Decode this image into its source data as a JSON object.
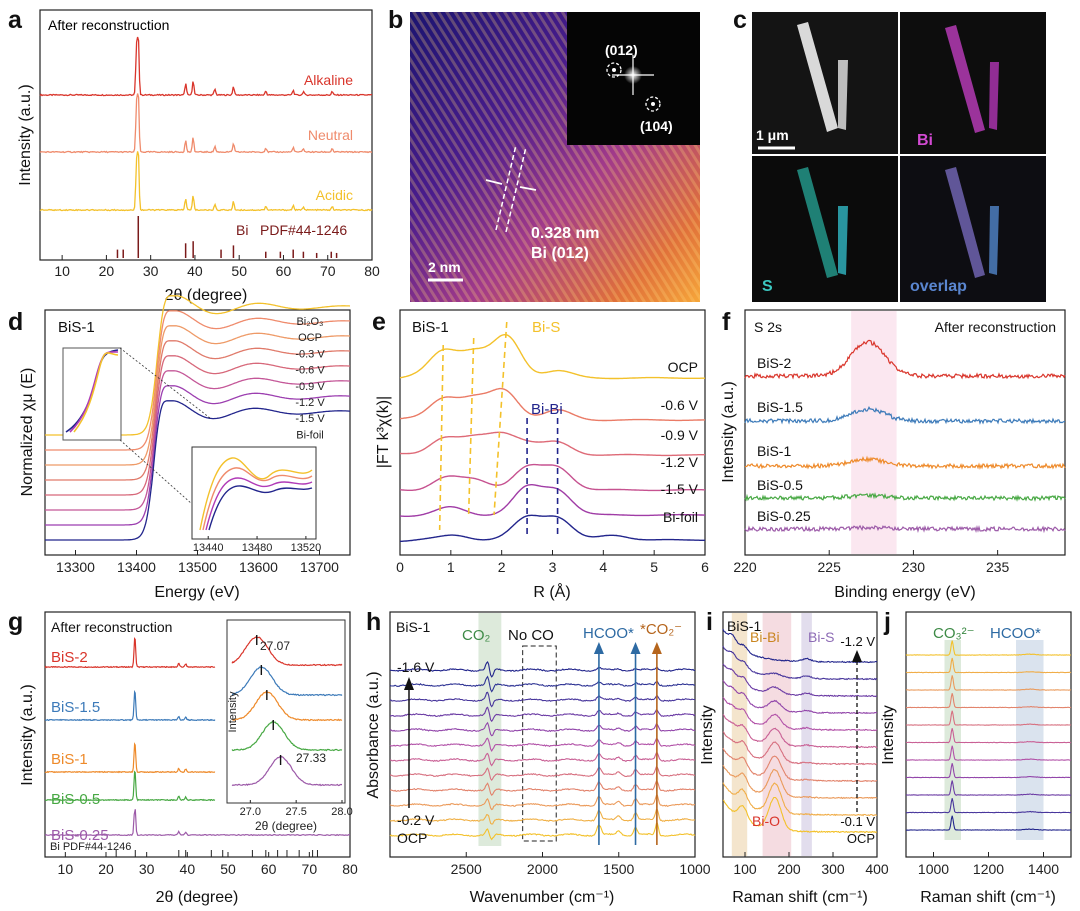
{
  "colors": {
    "red": "#d9352b",
    "salmon": "#ef8b6c",
    "yellow": "#f3c12b",
    "orange": "#ee8a2a",
    "blue": "#3c7ab9",
    "green": "#47a843",
    "purple": "#9c5aa8",
    "navy": "#22258c",
    "magenta": "#b03ab7",
    "teal": "#2eb3a8"
  },
  "chart_data": [
    {
      "panel": "a",
      "type": "line",
      "title": "After reconstruction",
      "xlabel": "2θ (degree)",
      "ylabel": "Intensity (a.u.)",
      "xlim": [
        5,
        80
      ],
      "xticks": [
        10,
        20,
        30,
        40,
        50,
        60,
        70,
        80
      ],
      "series": [
        {
          "name": "Alkaline",
          "peaks": [
            [
              26.8,
              0.8
            ],
            [
              27.2,
              1.0
            ],
            [
              37.9,
              0.2
            ],
            [
              39.6,
              0.25
            ],
            [
              44.5,
              0.1
            ],
            [
              48.7,
              0.15
            ],
            [
              56,
              0.07
            ],
            [
              62.2,
              0.08
            ],
            [
              64.5,
              0.06
            ],
            [
              71,
              0.06
            ]
          ]
        },
        {
          "name": "Neutral",
          "peaks": [
            [
              26.8,
              0.8
            ],
            [
              27.2,
              1.0
            ],
            [
              37.9,
              0.2
            ],
            [
              39.6,
              0.25
            ],
            [
              44.5,
              0.1
            ],
            [
              48.7,
              0.15
            ],
            [
              56,
              0.07
            ],
            [
              62.2,
              0.08
            ],
            [
              64.5,
              0.06
            ],
            [
              71,
              0.06
            ]
          ]
        },
        {
          "name": "Acidic",
          "peaks": [
            [
              26.8,
              0.8
            ],
            [
              27.2,
              1.0
            ],
            [
              37.9,
              0.2
            ],
            [
              39.6,
              0.25
            ],
            [
              44.5,
              0.1
            ],
            [
              48.7,
              0.15
            ],
            [
              56,
              0.07
            ],
            [
              62.2,
              0.08
            ],
            [
              64.5,
              0.06
            ],
            [
              71,
              0.06
            ]
          ]
        }
      ],
      "reference": {
        "name": "Bi",
        "pdf": "PDF#44-1246",
        "lines": [
          [
            22.5,
            0.2
          ],
          [
            23.8,
            0.2
          ],
          [
            27.2,
            1.0
          ],
          [
            37.9,
            0.35
          ],
          [
            39.6,
            0.4
          ],
          [
            45.9,
            0.2
          ],
          [
            48.7,
            0.3
          ],
          [
            56,
            0.15
          ],
          [
            59.3,
            0.15
          ],
          [
            62.2,
            0.2
          ],
          [
            64.5,
            0.15
          ],
          [
            67.5,
            0.12
          ],
          [
            70.8,
            0.15
          ],
          [
            72,
            0.12
          ]
        ]
      }
    },
    {
      "panel": "d",
      "type": "line",
      "title": "BiS-1",
      "xlabel": "Energy (eV)",
      "ylabel": "Normalized χμ (E)",
      "xlim": [
        13250,
        13750
      ],
      "xticks": [
        13300,
        13400,
        13500,
        13600,
        13700
      ],
      "series": [
        {
          "name": "Bi₂O₃"
        },
        {
          "name": "OCP"
        },
        {
          "name": "-0.3 V"
        },
        {
          "name": "-0.6 V"
        },
        {
          "name": "-0.9 V"
        },
        {
          "name": "-1.2 V"
        },
        {
          "name": "-1.5 V"
        },
        {
          "name": "Bi-foil"
        }
      ],
      "inset": {
        "xticks": [
          13440,
          13480,
          13520
        ]
      }
    },
    {
      "panel": "e",
      "type": "line",
      "title": "BiS-1",
      "xlabel": "R (Å)",
      "ylabel": "|FT k³χ(k)|",
      "xlim": [
        0,
        6
      ],
      "xticks": [
        0,
        1,
        2,
        3,
        4,
        5,
        6
      ],
      "series": [
        {
          "name": "OCP",
          "peaks": [
            [
              0.85,
              0.55
            ],
            [
              1.45,
              0.5
            ],
            [
              2.1,
              0.85
            ],
            [
              3.1,
              0.15
            ]
          ]
        },
        {
          "name": "-0.6 V",
          "peaks": [
            [
              0.85,
              0.45
            ],
            [
              1.45,
              0.4
            ],
            [
              2.05,
              0.6
            ],
            [
              3.1,
              0.2
            ]
          ]
        },
        {
          "name": "-0.9 V",
          "peaks": [
            [
              0.85,
              0.35
            ],
            [
              1.45,
              0.3
            ],
            [
              2.0,
              0.4
            ],
            [
              2.5,
              0.2
            ],
            [
              3.1,
              0.25
            ]
          ]
        },
        {
          "name": "-1.2 V",
          "peaks": [
            [
              0.9,
              0.25
            ],
            [
              1.5,
              0.2
            ],
            [
              2.5,
              0.45
            ],
            [
              3.1,
              0.45
            ]
          ]
        },
        {
          "name": "-1.5 V",
          "peaks": [
            [
              1.0,
              0.15
            ],
            [
              2.5,
              0.55
            ],
            [
              3.1,
              0.5
            ]
          ]
        },
        {
          "name": "Bi-foil",
          "peaks": [
            [
              1.1,
              0.1
            ],
            [
              2.5,
              0.45
            ],
            [
              3.1,
              0.45
            ],
            [
              4.2,
              0.1
            ]
          ]
        }
      ],
      "annotations": [
        "Bi-S",
        "Bi-Bi"
      ]
    },
    {
      "panel": "f",
      "type": "line",
      "title": "S 2s",
      "subtitle": "After reconstruction",
      "xlabel": "Binding energy (eV)",
      "ylabel": "Intensity (a.u.)",
      "xlim": [
        220,
        239
      ],
      "xticks": [
        220,
        225,
        230,
        235
      ],
      "highlight": [
        226.3,
        229
      ],
      "series": [
        {
          "name": "BiS-2",
          "peak": [
            227.3,
            1.0
          ]
        },
        {
          "name": "BiS-1.5",
          "peak": [
            227.3,
            0.35
          ]
        },
        {
          "name": "BiS-1",
          "peak": [
            227.3,
            0.2
          ]
        },
        {
          "name": "BiS-0.5",
          "peak": [
            227.3,
            0.08
          ]
        },
        {
          "name": "BiS-0.25",
          "peak": [
            227.3,
            0.04
          ]
        }
      ]
    },
    {
      "panel": "g",
      "type": "line",
      "title": "After reconstruction",
      "xlabel": "2θ (degree)",
      "ylabel": "Intensity (a.u.)",
      "xlim": [
        5,
        80
      ],
      "xticks": [
        10,
        20,
        30,
        40,
        50,
        60,
        70,
        80
      ],
      "series": [
        {
          "name": "BiS-2"
        },
        {
          "name": "BiS-1.5"
        },
        {
          "name": "BiS-1"
        },
        {
          "name": "BiS-0.5"
        },
        {
          "name": "BiS-0.25"
        }
      ],
      "reference": {
        "name": "Bi PDF#44-1246"
      },
      "inset": {
        "xlabel": "2θ (degree)",
        "ylabel": "Intensity",
        "xlim": [
          26.8,
          28.0
        ],
        "xticks": [
          27.0,
          27.5,
          28.0
        ],
        "peak_positions": [
          27.07,
          27.12,
          27.18,
          27.25,
          27.33
        ],
        "labels": [
          "27.07",
          "27.33"
        ]
      }
    },
    {
      "panel": "h",
      "type": "line",
      "title": "BiS-1",
      "xlabel": "Wavenumber (cm⁻¹)",
      "ylabel": "Absorbance (a.u.)",
      "xlim": [
        3000,
        1000
      ],
      "xticks": [
        2500,
        2000,
        1500,
        1000
      ],
      "potential_range": [
        "OCP",
        "-0.2 V",
        "-1.6 V"
      ],
      "bands": [
        "CO₂",
        "No CO",
        "HCOO*",
        "*CO₂⁻"
      ],
      "band_positions": {
        "CO2": 2340,
        "HCOO": [
          1630,
          1390
        ],
        "CO2_ads": 1250
      }
    },
    {
      "panel": "i",
      "type": "line",
      "title": "BiS-1",
      "xlabel": "Raman shift (cm⁻¹)",
      "ylabel": "Intensity",
      "xlim": [
        50,
        400
      ],
      "xticks": [
        100,
        200,
        300,
        400
      ],
      "potential_range": [
        "OCP",
        "-0.1 V",
        "-1.2 V"
      ],
      "bands": [
        "Bi-Bi",
        "Bi-S",
        "Bi-O"
      ]
    },
    {
      "panel": "j",
      "type": "line",
      "xlabel": "Raman shift (cm⁻¹)",
      "ylabel": "Intensity",
      "xlim": [
        900,
        1500
      ],
      "xticks": [
        1000,
        1200,
        1400
      ],
      "bands": [
        "CO₃²⁻",
        "HCOO*"
      ]
    }
  ],
  "panels": {
    "a": {
      "label": "a"
    },
    "b": {
      "label": "b"
    },
    "c": {
      "label": "c"
    },
    "d": {
      "label": "d"
    },
    "e": {
      "label": "e"
    },
    "f": {
      "label": "f"
    },
    "g": {
      "label": "g"
    },
    "h": {
      "label": "h"
    },
    "i": {
      "label": "i"
    },
    "j": {
      "label": "j"
    }
  },
  "microscopy": {
    "b": {
      "fft_spot_1": "(012)",
      "fft_spot_2": "(104)",
      "d_spacing": "0.328 nm",
      "plane": "Bi (012)",
      "scale": "2 nm"
    },
    "c": {
      "scale": "1 μm",
      "tile_bi": "Bi",
      "tile_s": "S",
      "tile_overlap": "overlap"
    }
  }
}
